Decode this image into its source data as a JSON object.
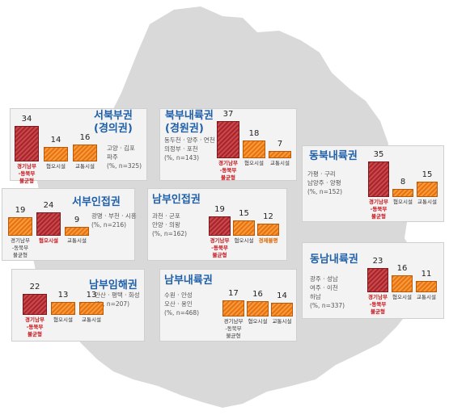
{
  "regions": [
    {
      "id": "northwest",
      "title": [
        "서북부권",
        "(경의권)"
      ],
      "sub": [
        "고양 · 김포",
        "파주",
        "(%, n=325)"
      ],
      "items": [
        {
          "label": [
            "경기남부",
            "-동북부",
            "불균형"
          ],
          "value": "34",
          "type": "red",
          "ltxt": "red"
        },
        {
          "label": [
            "혐오시설"
          ],
          "value": "14",
          "type": "orange",
          "ltxt": "dark"
        },
        {
          "label": [
            "교통시설"
          ],
          "value": "16",
          "type": "orange",
          "ltxt": "dark"
        }
      ]
    },
    {
      "id": "northinland",
      "title": [
        "북부내륙권",
        "(경원권)"
      ],
      "sub": [
        "동두천 · 양주 · 연천",
        "의정부 · 포천",
        "(%, n=143)"
      ],
      "items": [
        {
          "label": [
            "경기남부",
            "-동북부",
            "불균형"
          ],
          "value": "37",
          "type": "red",
          "ltxt": "red"
        },
        {
          "label": [
            "혐오시설"
          ],
          "value": "18",
          "type": "orange",
          "ltxt": "dark"
        },
        {
          "label": [
            "교통시설"
          ],
          "value": "7",
          "type": "orange",
          "ltxt": "dark"
        }
      ]
    },
    {
      "id": "northeast",
      "title": [
        "동북내륙권"
      ],
      "sub": [
        "가평 · 구리",
        "남양주 · 양평",
        "(%, n=152)"
      ],
      "items": [
        {
          "label": [
            "경기남부",
            "-동북부",
            "불균형"
          ],
          "value": "35",
          "type": "red",
          "ltxt": "red"
        },
        {
          "label": [
            "혐오시설"
          ],
          "value": "8",
          "type": "orange",
          "ltxt": "dark"
        },
        {
          "label": [
            "교통시설"
          ],
          "value": "15",
          "type": "orange",
          "ltxt": "dark"
        }
      ]
    },
    {
      "id": "westadj",
      "title": [
        "서부인접권"
      ],
      "sub": [
        "광명 · 부천 · 시흥",
        "(%, n=216)"
      ],
      "items": [
        {
          "label": [
            "경기남부",
            "-동북부",
            "불균형"
          ],
          "value": "19",
          "type": "orange",
          "ltxt": "dark"
        },
        {
          "label": [
            "혐오시설"
          ],
          "value": "24",
          "type": "red",
          "ltxt": "red"
        },
        {
          "label": [
            "교통시설"
          ],
          "value": "9",
          "type": "orange",
          "ltxt": "dark"
        }
      ]
    },
    {
      "id": "southadj",
      "title": [
        "남부인접권"
      ],
      "sub": [
        "과천 · 군포",
        "안양 · 의왕",
        "(%, n=162)"
      ],
      "items": [
        {
          "label": [
            "경기남부",
            "-동북부",
            "불균형"
          ],
          "value": "19",
          "type": "red",
          "ltxt": "red"
        },
        {
          "label": [
            "혐오시설"
          ],
          "value": "15",
          "type": "orange",
          "ltxt": "dark"
        },
        {
          "label": [
            "경제불평"
          ],
          "value": "12",
          "type": "orange",
          "ltxt": "orange"
        }
      ]
    },
    {
      "id": "southeast",
      "title": [
        "동남내륙권"
      ],
      "sub": [
        "광주 · 성남",
        "여주 · 이천",
        "하남",
        "(%, n=337)"
      ],
      "items": [
        {
          "label": [
            "경기남부",
            "-동북부",
            "불균형"
          ],
          "value": "23",
          "type": "red",
          "ltxt": "red"
        },
        {
          "label": [
            "혐오시설"
          ],
          "value": "16",
          "type": "orange",
          "ltxt": "dark"
        },
        {
          "label": [
            "교통시설"
          ],
          "value": "11",
          "type": "orange",
          "ltxt": "dark"
        }
      ]
    },
    {
      "id": "southcoast",
      "title": [
        "남부임해권"
      ],
      "sub": [
        "안산 · 평택 · 화성",
        "(%, n=207)"
      ],
      "items": [
        {
          "label": [
            "경기남부",
            "-동북부",
            "불균형"
          ],
          "value": "22",
          "type": "red",
          "ltxt": "red"
        },
        {
          "label": [
            "혐오시설"
          ],
          "value": "13",
          "type": "orange",
          "ltxt": "dark"
        },
        {
          "label": [
            "교통시설"
          ],
          "value": "13",
          "type": "orange",
          "ltxt": "dark"
        }
      ]
    },
    {
      "id": "southinland",
      "title": [
        "남부내륙권"
      ],
      "sub": [
        "수원 · 안성",
        "오산 · 용인",
        "(%, n=468)"
      ],
      "items": [
        {
          "label": [
            "경기남부",
            "-동북부",
            "불균형"
          ],
          "value": "17",
          "type": "orange",
          "ltxt": "dark"
        },
        {
          "label": [
            "혐오시설"
          ],
          "value": "16",
          "type": "orange",
          "ltxt": "dark"
        },
        {
          "label": [
            "교통시설"
          ],
          "value": "14",
          "type": "orange",
          "ltxt": "dark"
        }
      ]
    }
  ],
  "colors": {
    "map": "#d9d9d9",
    "title": "#1f5fa8",
    "bar_red": "#a8262b",
    "bar_orange": "#e8720c"
  }
}
